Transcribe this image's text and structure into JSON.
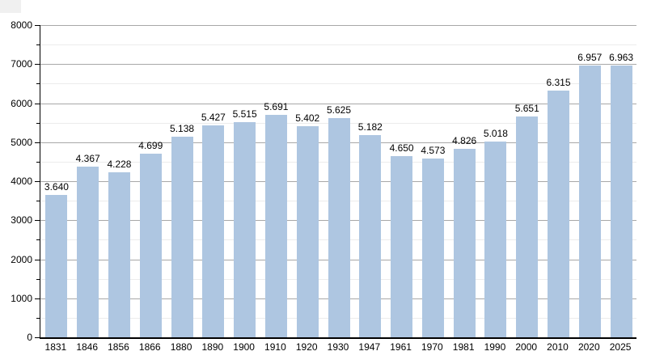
{
  "chart_data": {
    "type": "bar",
    "title": "",
    "xlabel": "",
    "ylabel": "",
    "categories": [
      "1831",
      "1846",
      "1856",
      "1866",
      "1880",
      "1890",
      "1900",
      "1910",
      "1920",
      "1930",
      "1947",
      "1961",
      "1970",
      "1981",
      "1990",
      "2000",
      "2010",
      "2020",
      "2025"
    ],
    "values": [
      3640,
      4367,
      4228,
      4699,
      5138,
      5427,
      5515,
      5691,
      5402,
      5625,
      5182,
      4650,
      4573,
      4826,
      5018,
      5651,
      6315,
      6957,
      6963
    ],
    "value_labels": [
      "3.640",
      "4.367",
      "4.228",
      "4.699",
      "5.138",
      "5.427",
      "5.515",
      "5.691",
      "5.402",
      "5.625",
      "5.182",
      "4.650",
      "4.573",
      "4.826",
      "5.018",
      "5.651",
      "6.315",
      "6.957",
      "6.963"
    ],
    "ylim": [
      0,
      8000
    ],
    "y_major_step": 1000,
    "y_minor_step": 500,
    "y_tick_labels": [
      "0",
      "1000",
      "2000",
      "3000",
      "4000",
      "5000",
      "6000",
      "7000",
      "8000"
    ],
    "grid": true,
    "legend_position": "none",
    "colors": {
      "bar_fill": "#aec6e1",
      "major_gridline": "#a8a8a8",
      "minor_gridline": "#ececec",
      "axis": "#000000",
      "label_text": "#000000",
      "background": "#ffffff",
      "corner_artifact": "#f0f0f0"
    }
  }
}
